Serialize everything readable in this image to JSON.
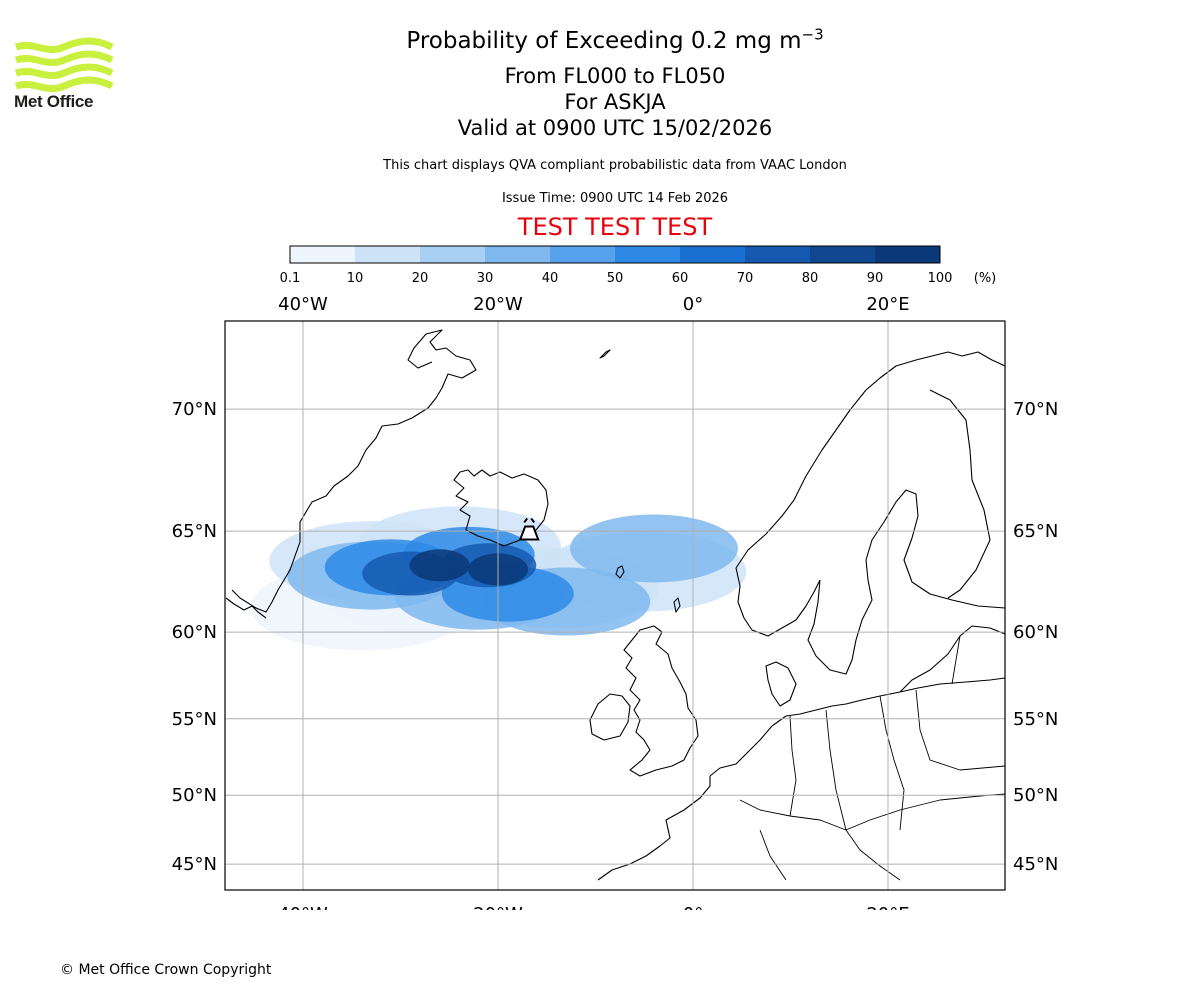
{
  "header": {
    "title_prefix": "Probability of Exceeding 0.2 mg m",
    "title_exponent": "−3",
    "flight_levels": "From FL000 to FL050",
    "volcano": "For ASKJA",
    "valid_time": "Valid at 0900 UTC 15/02/2026",
    "subtitle": "This chart displays QVA compliant probabilistic data from VAAC London",
    "issue_time": "Issue Time: 0900 UTC 14 Feb 2026",
    "test_banner": "TEST TEST TEST",
    "test_color": "#e8000b"
  },
  "logo": {
    "text": "Met Office",
    "wave_color": "#c8f03c"
  },
  "colorbar": {
    "ticks": [
      "0.1",
      "10",
      "20",
      "30",
      "40",
      "50",
      "60",
      "70",
      "80",
      "90",
      "100"
    ],
    "unit": "(%)",
    "colors": [
      "#eef5fd",
      "#cfe3f8",
      "#a9cff4",
      "#7fb8ef",
      "#56a2ec",
      "#2e89e6",
      "#1a6fd1",
      "#1559b0",
      "#0f4791",
      "#0a3878"
    ]
  },
  "map": {
    "lon_range": [
      -48,
      32
    ],
    "lat_range": [
      43,
      73
    ],
    "lon_labels": [
      {
        "lon": -40,
        "label": "40°W"
      },
      {
        "lon": -20,
        "label": "20°W"
      },
      {
        "lon": 0,
        "label": "0°"
      },
      {
        "lon": 20,
        "label": "20°E"
      }
    ],
    "lat_labels": [
      {
        "lat": 70,
        "label": "70°N"
      },
      {
        "lat": 65,
        "label": "65°N"
      },
      {
        "lat": 60,
        "label": "60°N"
      },
      {
        "lat": 55,
        "label": "55°N"
      },
      {
        "lat": 50,
        "label": "50°N"
      },
      {
        "lat": 45,
        "label": "45°N"
      }
    ],
    "volcano": {
      "name": "ASKJA",
      "lon": -16.8,
      "lat": 65.03,
      "icon": "volcano-icon"
    },
    "plume_cells": [
      {
        "lon": -34,
        "lat": 61.3,
        "level": 0
      },
      {
        "lon": -27,
        "lat": 62.1,
        "level": 0
      },
      {
        "lon": -33,
        "lat": 63.6,
        "level": 1
      },
      {
        "lon": -24,
        "lat": 64.3,
        "level": 1
      },
      {
        "lon": -14,
        "lat": 62.3,
        "level": 1
      },
      {
        "lon": -5,
        "lat": 63.1,
        "level": 1
      },
      {
        "lon": -33,
        "lat": 62.9,
        "level": 3
      },
      {
        "lon": -22,
        "lat": 61.9,
        "level": 3
      },
      {
        "lon": -13,
        "lat": 61.6,
        "level": 3
      },
      {
        "lon": -4,
        "lat": 64.2,
        "level": 3
      },
      {
        "lon": -31,
        "lat": 63.3,
        "level": 5
      },
      {
        "lon": -23,
        "lat": 63.9,
        "level": 5
      },
      {
        "lon": -19,
        "lat": 62.0,
        "level": 5
      },
      {
        "lon": -29,
        "lat": 63.0,
        "level": 7
      },
      {
        "lon": -21,
        "lat": 63.4,
        "level": 7
      },
      {
        "lon": -26,
        "lat": 63.4,
        "level": 9
      },
      {
        "lon": -20,
        "lat": 63.2,
        "level": 9
      }
    ]
  },
  "footer": {
    "copyright": "© Met Office Crown Copyright"
  }
}
